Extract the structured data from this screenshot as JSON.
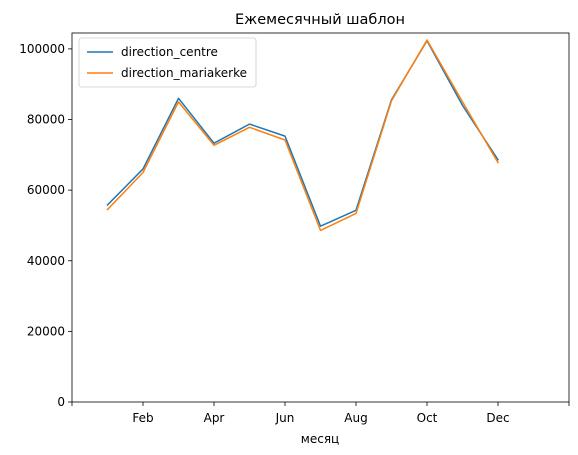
{
  "chart_data": {
    "type": "line",
    "title": "Ежемесячный шаблон",
    "xlabel": "месяц",
    "ylabel": "",
    "x": [
      1,
      2,
      3,
      4,
      5,
      6,
      7,
      8,
      9,
      10,
      11,
      12
    ],
    "xlim": [
      0,
      14
    ],
    "xticks": [
      0,
      2,
      4,
      6,
      8,
      10,
      12,
      14
    ],
    "xtick_labels": [
      "",
      "Feb",
      "Apr",
      "Jun",
      "Aug",
      "Oct",
      "Dec",
      ""
    ],
    "ylim": [
      0,
      104500
    ],
    "yticks": [
      0,
      20000,
      40000,
      60000,
      80000,
      100000
    ],
    "ytick_labels": [
      "0",
      "20000",
      "40000",
      "60000",
      "80000",
      "100000"
    ],
    "grid": false,
    "legend_position": "top-left",
    "series": [
      {
        "name": "direction_centre",
        "color": "#1f77b4",
        "values": [
          55800,
          66000,
          86000,
          73300,
          78700,
          75300,
          49800,
          54300,
          85600,
          102300,
          84000,
          68600
        ]
      },
      {
        "name": "direction_mariakerke",
        "color": "#ff7f0e",
        "values": [
          54500,
          65000,
          85000,
          72700,
          77800,
          74200,
          48600,
          53400,
          85300,
          102500,
          85000,
          67800
        ]
      }
    ]
  }
}
